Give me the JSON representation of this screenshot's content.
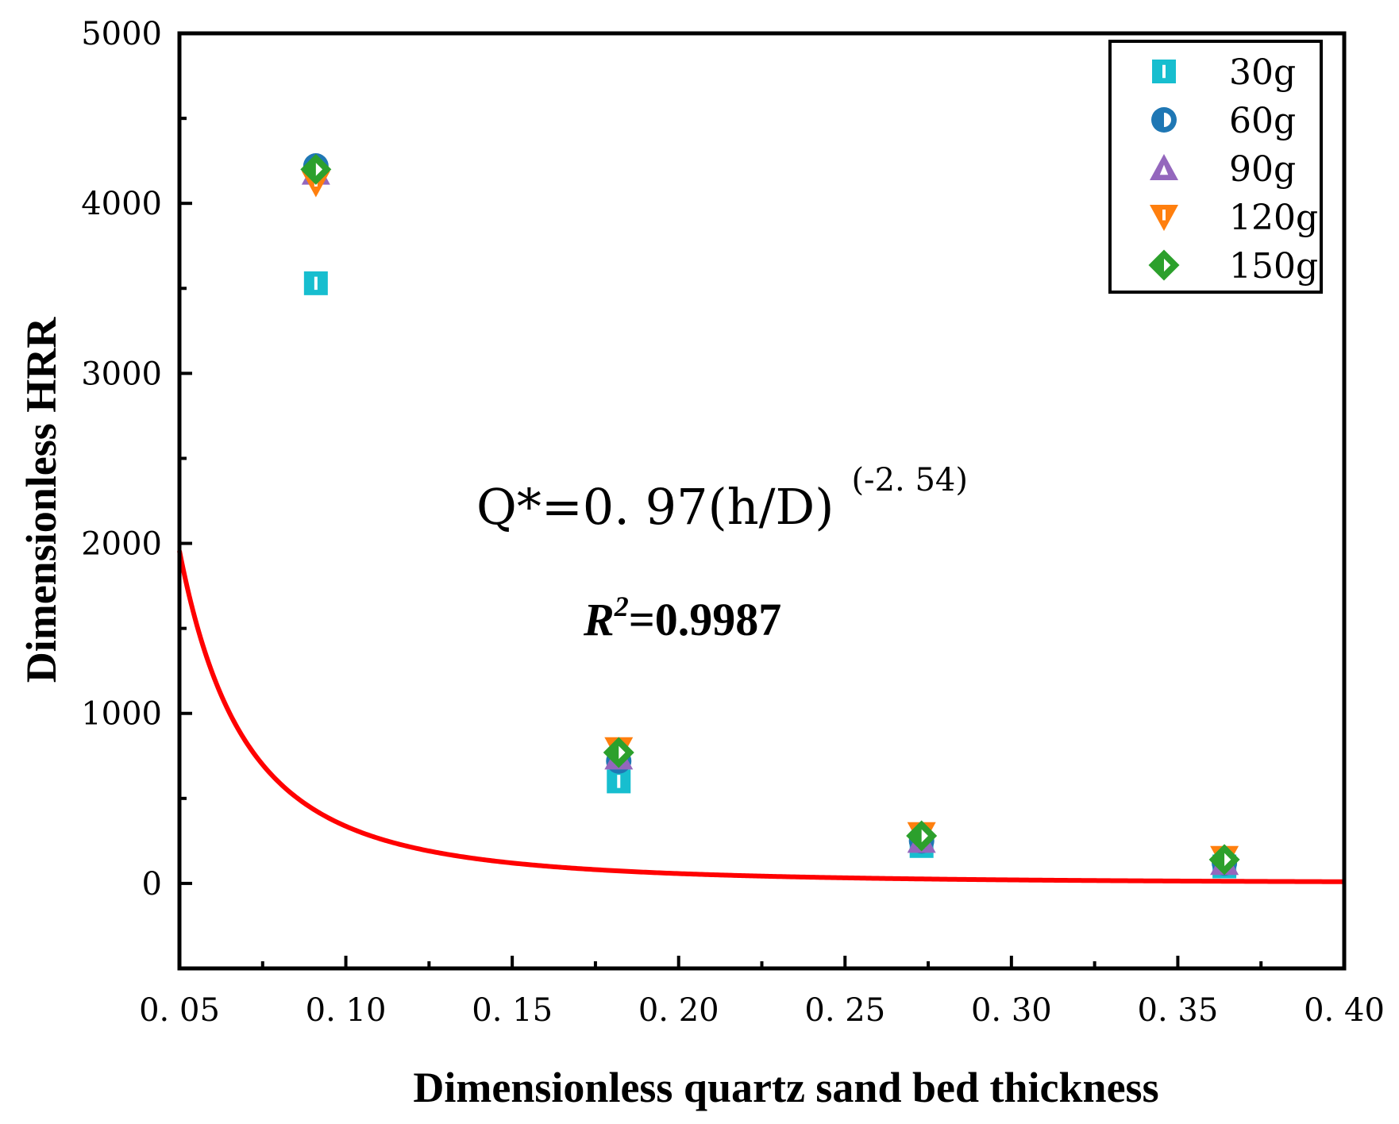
{
  "chart_data": {
    "type": "scatter",
    "xlabel": "Dimensionless quartz sand bed thickness",
    "ylabel": "Dimensionless HRR",
    "xlim": [
      0.05,
      0.4
    ],
    "ylim": [
      -500,
      5000
    ],
    "x_ticks": [
      0.05,
      0.1,
      0.15,
      0.2,
      0.25,
      0.3,
      0.35,
      0.4
    ],
    "x_tick_labels": [
      "0. 05",
      "0. 10",
      "0. 15",
      "0. 20",
      "0. 25",
      "0. 30",
      "0. 35",
      "0. 40"
    ],
    "y_ticks": [
      0,
      1000,
      2000,
      3000,
      4000,
      5000
    ],
    "y_tick_labels": [
      "0",
      "1000",
      "2000",
      "3000",
      "4000",
      "5000"
    ],
    "legend_position": "top-right",
    "series": [
      {
        "name": "30g",
        "marker": "square",
        "color": "#17becf",
        "x": [
          0.091,
          0.182,
          0.273,
          0.364
        ],
        "y": [
          3530,
          600,
          220,
          100
        ]
      },
      {
        "name": "60g",
        "marker": "circle",
        "color": "#1f77b4",
        "x": [
          0.091,
          0.182,
          0.273,
          0.364
        ],
        "y": [
          4220,
          720,
          250,
          120
        ]
      },
      {
        "name": "90g",
        "marker": "triangle-up",
        "color": "#9467bd",
        "x": [
          0.091,
          0.182,
          0.273,
          0.364
        ],
        "y": [
          4180,
          740,
          250,
          120
        ]
      },
      {
        "name": "120g",
        "marker": "triangle-down",
        "color": "#ff7f0e",
        "x": [
          0.091,
          0.182,
          0.273,
          0.364
        ],
        "y": [
          4120,
          790,
          290,
          150
        ]
      },
      {
        "name": "150g",
        "marker": "diamond",
        "color": "#2ca02c",
        "x": [
          0.091,
          0.182,
          0.273,
          0.364
        ],
        "y": [
          4200,
          770,
          280,
          140
        ]
      }
    ],
    "fit": {
      "coefficient": 0.97,
      "exponent": -2.54,
      "color": "#ff0000",
      "equation_main": "Q*=0. 97(h/D)",
      "equation_exponent": "(-2. 54)",
      "r2_symbol": "R",
      "r2_power": "2",
      "r2_value": "=0.9987"
    }
  }
}
